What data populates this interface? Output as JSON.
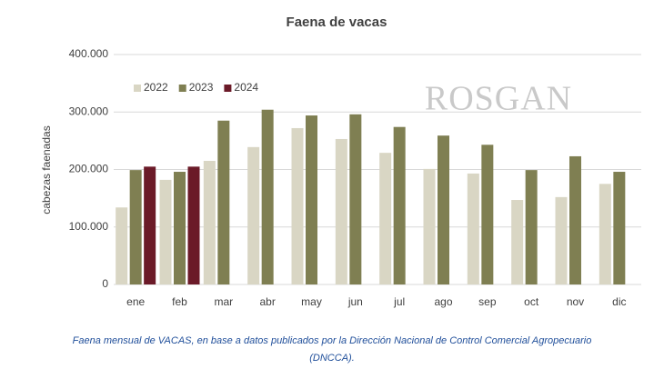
{
  "chart_data": {
    "type": "bar",
    "title": "Faena de vacas",
    "ylabel": "cabezas faenadas",
    "watermark": "ROSGAN",
    "caption": [
      "Faena mensual de VACAS, en base a datos publicados por la Dirección Nacional de Control Comercial Agropecuario",
      "(DNCCA)."
    ],
    "categories": [
      "ene",
      "feb",
      "mar",
      "abr",
      "may",
      "jun",
      "jul",
      "ago",
      "sep",
      "oct",
      "nov",
      "dic"
    ],
    "series": [
      {
        "name": "2022",
        "color": "#d9d6c4",
        "values": [
          134000,
          182000,
          215000,
          239000,
          272000,
          253000,
          229000,
          201000,
          193000,
          147000,
          152000,
          175000
        ]
      },
      {
        "name": "2023",
        "color": "#7f7f52",
        "values": [
          199000,
          196000,
          285000,
          304000,
          294000,
          296000,
          274000,
          259000,
          243000,
          199000,
          223000,
          196000
        ]
      },
      {
        "name": "2024",
        "color": "#6b1a28",
        "values": [
          205000,
          205000,
          null,
          null,
          null,
          null,
          null,
          null,
          null,
          null,
          null,
          null
        ]
      }
    ],
    "ylim": [
      0,
      400000
    ],
    "yticks": [
      0,
      {
        "value": 100000,
        "label": "100.000"
      },
      {
        "value": 200000,
        "label": "200.000"
      },
      {
        "value": 300000,
        "label": "300.000"
      },
      {
        "value": 400000,
        "label": "400.000"
      }
    ],
    "grid": true,
    "legend": "top-left"
  }
}
